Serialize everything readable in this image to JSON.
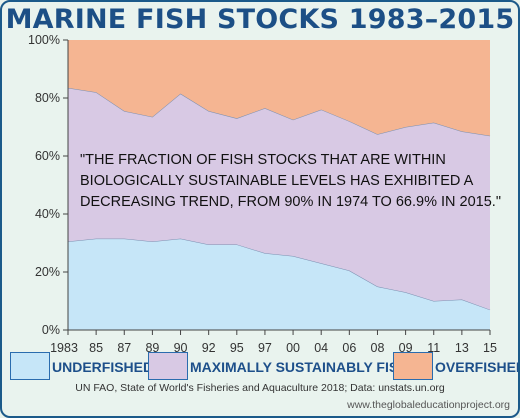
{
  "title": "MARINE FISH STOCKS 1983–2015",
  "chart_data": {
    "type": "area",
    "stacked": true,
    "percent": true,
    "x": [
      "1983",
      "85",
      "87",
      "89",
      "90",
      "92",
      "95",
      "97",
      "00",
      "04",
      "06",
      "08",
      "09",
      "11",
      "13",
      "15"
    ],
    "series": [
      {
        "name": "UNDERFISHED",
        "color": "#c6e6f8",
        "values": [
          30.5,
          31.5,
          31.5,
          30.5,
          31.5,
          29.5,
          29.5,
          26.5,
          25.5,
          23,
          20.5,
          15,
          13,
          10,
          10.5,
          7
        ]
      },
      {
        "name": "MAXIMALLY SUSTAINABLY FISHED",
        "color": "#d8c9e4",
        "values": [
          53,
          50.5,
          44,
          43,
          50,
          46,
          43.5,
          50,
          47,
          53,
          51.5,
          52.5,
          57,
          61.5,
          58,
          60
        ]
      },
      {
        "name": "OVERFISHED",
        "color": "#f5b592",
        "values": [
          16.5,
          18,
          24.5,
          26.5,
          18.5,
          24.5,
          27,
          23.5,
          27.5,
          24,
          28,
          32.5,
          30,
          28.5,
          31.5,
          33
        ]
      }
    ],
    "yticks": [
      "0%",
      "20%",
      "40%",
      "60%",
      "80%",
      "100%"
    ],
    "ylim": [
      0,
      100
    ],
    "annotation": [
      "\"THE FRACTION OF FISH STOCKS THAT ARE WITHIN",
      "BIOLOGICALLY SUSTAINABLE LEVELS HAS EXHIBITED A",
      "DECREASING TREND, FROM 90% IN 1974 TO 66.9% IN 2015.\""
    ],
    "legend_position": "bottom"
  },
  "legend": [
    "UNDERFISHED",
    "MAXIMALLY SUSTAINABLY FISHED",
    "OVERFISHED"
  ],
  "source": "UN FAO, State of World's Fisheries and Aquaculture 2018; Data: unstats.un.org",
  "website": "www.theglobaleducationproject.org"
}
